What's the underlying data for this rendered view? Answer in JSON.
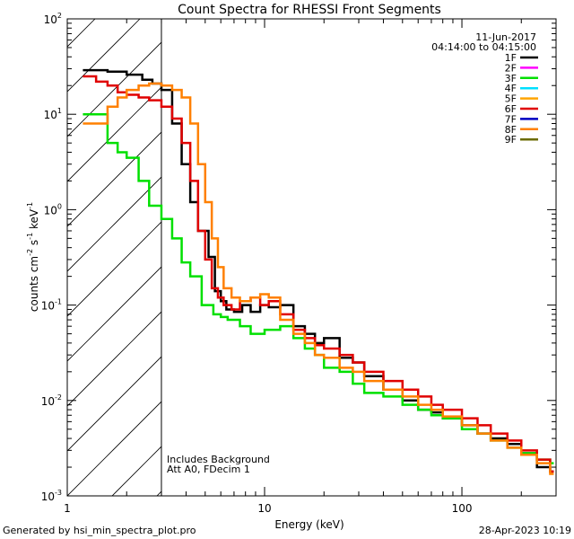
{
  "chart_data": {
    "type": "line",
    "title": "Count Spectra for RHESSI Front Segments",
    "xlabel": "Energy (keV)",
    "ylabel_parts": {
      "pre": "counts cm",
      "e1": "-2",
      "mid1": " s",
      "e2": "-1",
      "mid2": " keV",
      "e3": "-1"
    },
    "x_scale": "log",
    "y_scale": "log",
    "xlim": [
      1,
      300
    ],
    "ylim": [
      0.001,
      100
    ],
    "x_ticks": [
      {
        "value": 1,
        "label": "1"
      },
      {
        "value": 10,
        "label": "10"
      },
      {
        "value": 100,
        "label": "100"
      }
    ],
    "y_ticks": [
      {
        "value": 0.001,
        "base": "10",
        "exp": "-3"
      },
      {
        "value": 0.01,
        "base": "10",
        "exp": "-2"
      },
      {
        "value": 0.1,
        "base": "10",
        "exp": "-1"
      },
      {
        "value": 1,
        "base": "10",
        "exp": "0"
      },
      {
        "value": 10,
        "base": "10",
        "exp": "1"
      },
      {
        "value": 100,
        "base": "10",
        "exp": "2"
      }
    ],
    "date": "11-Jun-2017",
    "time_range": "04:14:00 to 04:15:00",
    "shaded_region_xmax": 3,
    "annotations": [
      "Includes Background",
      "Att A0, FDecim 1"
    ],
    "legend": [
      {
        "name": "1F",
        "color": "#000000"
      },
      {
        "name": "2F",
        "color": "#ff00ff"
      },
      {
        "name": "3F",
        "color": "#00e000"
      },
      {
        "name": "4F",
        "color": "#00e0ff"
      },
      {
        "name": "5F",
        "color": "#ffa500"
      },
      {
        "name": "6F",
        "color": "#e00000"
      },
      {
        "name": "7F",
        "color": "#0000c0"
      },
      {
        "name": "8F",
        "color": "#ff8000"
      },
      {
        "name": "9F",
        "color": "#6b6b00"
      }
    ],
    "series": [
      {
        "name": "1F",
        "color": "#000000",
        "x": [
          1.2,
          1.6,
          2.0,
          2.4,
          2.7,
          3.0,
          3.4,
          3.8,
          4.2,
          4.6,
          4.9,
          5.2,
          5.6,
          6.0,
          6.4,
          7.0,
          7.7,
          8.5,
          9.5,
          10.5,
          12,
          14,
          16,
          18,
          20,
          24,
          28,
          32,
          40,
          50,
          60,
          70,
          80,
          100,
          120,
          140,
          170,
          200,
          240,
          280
        ],
        "y": [
          29,
          28,
          26,
          23,
          21,
          18,
          8,
          3.0,
          1.2,
          0.6,
          0.6,
          0.32,
          0.14,
          0.11,
          0.09,
          0.085,
          0.1,
          0.085,
          0.1,
          0.095,
          0.1,
          0.06,
          0.05,
          0.04,
          0.045,
          0.028,
          0.025,
          0.018,
          0.013,
          0.01,
          0.008,
          0.0075,
          0.0065,
          0.0055,
          0.0045,
          0.004,
          0.0035,
          0.0028,
          0.002,
          0.0018
        ]
      },
      {
        "name": "3F",
        "color": "#00e000",
        "x": [
          1.2,
          1.4,
          1.6,
          1.8,
          2.0,
          2.3,
          2.6,
          3.0,
          3.4,
          3.8,
          4.2,
          4.8,
          5.5,
          6.0,
          6.5,
          7.5,
          8.5,
          10,
          12,
          14,
          16,
          18,
          20,
          24,
          28,
          32,
          40,
          50,
          60,
          70,
          80,
          100,
          120,
          140,
          170,
          200,
          240,
          280
        ],
        "y": [
          10,
          10,
          5,
          4,
          3.5,
          2.0,
          1.1,
          0.8,
          0.5,
          0.28,
          0.2,
          0.1,
          0.08,
          0.075,
          0.07,
          0.06,
          0.05,
          0.055,
          0.06,
          0.045,
          0.035,
          0.03,
          0.022,
          0.02,
          0.015,
          0.012,
          0.011,
          0.009,
          0.008,
          0.007,
          0.0065,
          0.005,
          0.0045,
          0.0038,
          0.0032,
          0.0028,
          0.0024,
          0.0022
        ]
      },
      {
        "name": "6F",
        "color": "#e00000",
        "x": [
          1.2,
          1.4,
          1.6,
          1.8,
          2.0,
          2.3,
          2.6,
          3.0,
          3.4,
          3.8,
          4.2,
          4.6,
          5.0,
          5.4,
          5.8,
          6.2,
          6.8,
          7.5,
          8.5,
          9.5,
          10.5,
          12,
          14,
          16,
          18,
          20,
          24,
          28,
          32,
          40,
          50,
          60,
          70,
          80,
          100,
          120,
          140,
          170,
          200,
          240,
          280
        ],
        "y": [
          25,
          22,
          20,
          17,
          16,
          15,
          14,
          12,
          9,
          5,
          2.0,
          0.6,
          0.3,
          0.15,
          0.12,
          0.1,
          0.09,
          0.11,
          0.12,
          0.1,
          0.11,
          0.08,
          0.055,
          0.045,
          0.038,
          0.035,
          0.03,
          0.025,
          0.02,
          0.016,
          0.013,
          0.011,
          0.009,
          0.008,
          0.0065,
          0.0055,
          0.0045,
          0.0038,
          0.003,
          0.0024,
          0.0018
        ]
      },
      {
        "name": "8F",
        "color": "#ff8000",
        "x": [
          1.2,
          1.4,
          1.6,
          1.8,
          2.0,
          2.3,
          2.6,
          3.0,
          3.4,
          3.8,
          4.2,
          4.6,
          5.0,
          5.4,
          5.8,
          6.2,
          6.8,
          7.5,
          8.5,
          9.5,
          10.5,
          12,
          14,
          16,
          18,
          20,
          24,
          28,
          32,
          40,
          50,
          60,
          70,
          80,
          100,
          120,
          140,
          170,
          200,
          240,
          280
        ],
        "y": [
          8,
          8,
          12,
          15,
          18,
          20,
          21,
          20,
          18,
          15,
          8,
          3.0,
          1.2,
          0.5,
          0.25,
          0.15,
          0.12,
          0.11,
          0.12,
          0.13,
          0.12,
          0.07,
          0.05,
          0.04,
          0.03,
          0.028,
          0.022,
          0.02,
          0.016,
          0.013,
          0.011,
          0.009,
          0.008,
          0.0068,
          0.0055,
          0.0045,
          0.0038,
          0.0032,
          0.0027,
          0.0022,
          0.0017
        ]
      }
    ]
  },
  "footer": {
    "generated": "Generated by hsi_min_spectra_plot.pro",
    "timestamp": "28-Apr-2023 10:19"
  }
}
